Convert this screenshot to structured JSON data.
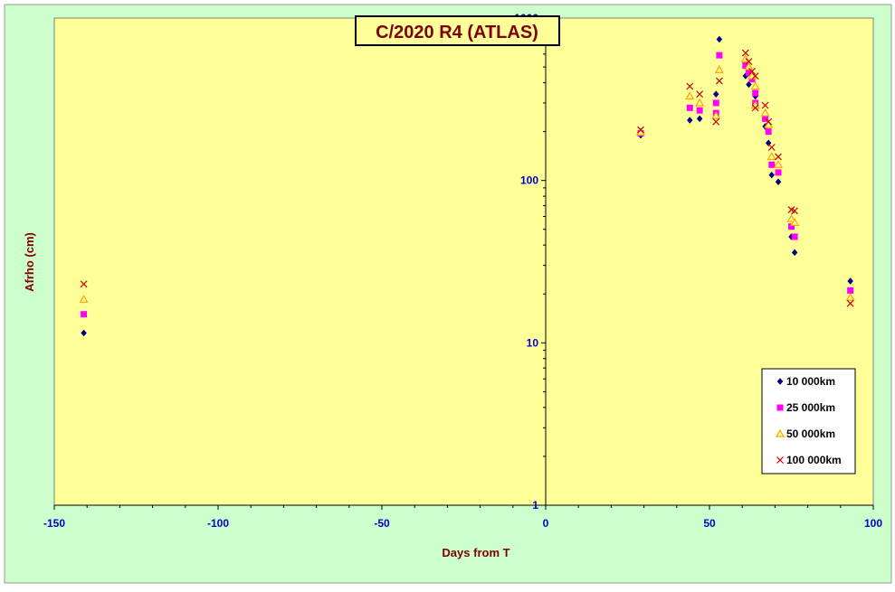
{
  "chart_data": {
    "type": "scatter",
    "title": "C/2020 R4 (ATLAS)",
    "xlabel": "Days from  T",
    "ylabel": "Afrho  (cm)",
    "xlim": [
      -150,
      100
    ],
    "ylim": [
      1,
      1000
    ],
    "yscale": "log",
    "grid": false,
    "legend_position": "bottom-right",
    "x_ticks": [
      -150,
      -100,
      -50,
      0,
      50,
      100
    ],
    "y_ticks": [
      1,
      10,
      100,
      1000
    ],
    "x_tick_labels": [
      "-150",
      "-100",
      "-50",
      "0",
      "50",
      "100"
    ],
    "y_tick_labels": [
      "1",
      "10",
      "100",
      "1000"
    ],
    "colors": {
      "page_background": "#ccffcc",
      "plot_background": "#ffff99",
      "axis_tick_labels": "#0000cc",
      "axis_titles": "#800000",
      "title_text": "#800000"
    },
    "series": [
      {
        "name": "10 000km",
        "marker": "diamond",
        "color": "#000080",
        "points": [
          [
            -141,
            11.5
          ],
          [
            29,
            190
          ],
          [
            44,
            235
          ],
          [
            47,
            240
          ],
          [
            52,
            340
          ],
          [
            53,
            740
          ],
          [
            61,
            440
          ],
          [
            62,
            390
          ],
          [
            64,
            330
          ],
          [
            64,
            290
          ],
          [
            67,
            215
          ],
          [
            68,
            170
          ],
          [
            69,
            108
          ],
          [
            71,
            98
          ],
          [
            75,
            45
          ],
          [
            76,
            36
          ],
          [
            93,
            24
          ]
        ]
      },
      {
        "name": "25 000km",
        "marker": "square",
        "color": "#ff00ff",
        "points": [
          [
            -141,
            15
          ],
          [
            29,
            195
          ],
          [
            44,
            280
          ],
          [
            47,
            270
          ],
          [
            52,
            300
          ],
          [
            52,
            260
          ],
          [
            53,
            590
          ],
          [
            61,
            510
          ],
          [
            62,
            460
          ],
          [
            63,
            420
          ],
          [
            64,
            345
          ],
          [
            64,
            300
          ],
          [
            67,
            240
          ],
          [
            68,
            200
          ],
          [
            69,
            125
          ],
          [
            71,
            112
          ],
          [
            75,
            52
          ],
          [
            76,
            45
          ],
          [
            93,
            21
          ]
        ]
      },
      {
        "name": "50 000km",
        "marker": "triangle",
        "color": "#ffa500",
        "points": [
          [
            -141,
            18.5
          ],
          [
            29,
            198
          ],
          [
            44,
            330
          ],
          [
            47,
            300
          ],
          [
            52,
            250
          ],
          [
            53,
            480
          ],
          [
            61,
            560
          ],
          [
            62,
            500
          ],
          [
            63,
            440
          ],
          [
            64,
            380
          ],
          [
            64,
            290
          ],
          [
            67,
            260
          ],
          [
            68,
            220
          ],
          [
            69,
            140
          ],
          [
            71,
            125
          ],
          [
            75,
            58
          ],
          [
            76,
            55
          ],
          [
            93,
            19
          ]
        ]
      },
      {
        "name": "100 000km",
        "marker": "x",
        "color": "#cc0000",
        "points": [
          [
            -141,
            23
          ],
          [
            29,
            205
          ],
          [
            44,
            380
          ],
          [
            47,
            340
          ],
          [
            52,
            230
          ],
          [
            53,
            410
          ],
          [
            61,
            610
          ],
          [
            62,
            540
          ],
          [
            63,
            470
          ],
          [
            64,
            440
          ],
          [
            64,
            280
          ],
          [
            67,
            290
          ],
          [
            68,
            230
          ],
          [
            69,
            160
          ],
          [
            71,
            140
          ],
          [
            75,
            66
          ],
          [
            76,
            65
          ],
          [
            93,
            17.5
          ]
        ]
      }
    ]
  }
}
